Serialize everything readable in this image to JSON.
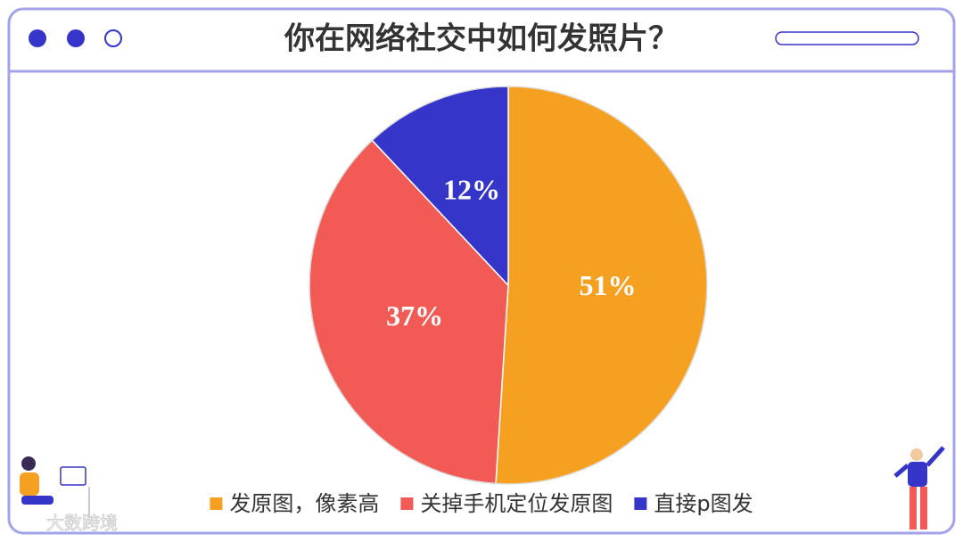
{
  "chart_data": {
    "type": "pie",
    "title": "你在网络社交中如何发照片？",
    "categories": [
      "发原图，像素高",
      "关掉手机定位发原图",
      "直接p图发"
    ],
    "values": [
      51,
      37,
      12
    ],
    "value_labels": [
      "51%",
      "37%",
      "12%"
    ],
    "colors": [
      "#f5a021",
      "#f25b55",
      "#3535c9"
    ]
  },
  "watermark": "大数跨境"
}
